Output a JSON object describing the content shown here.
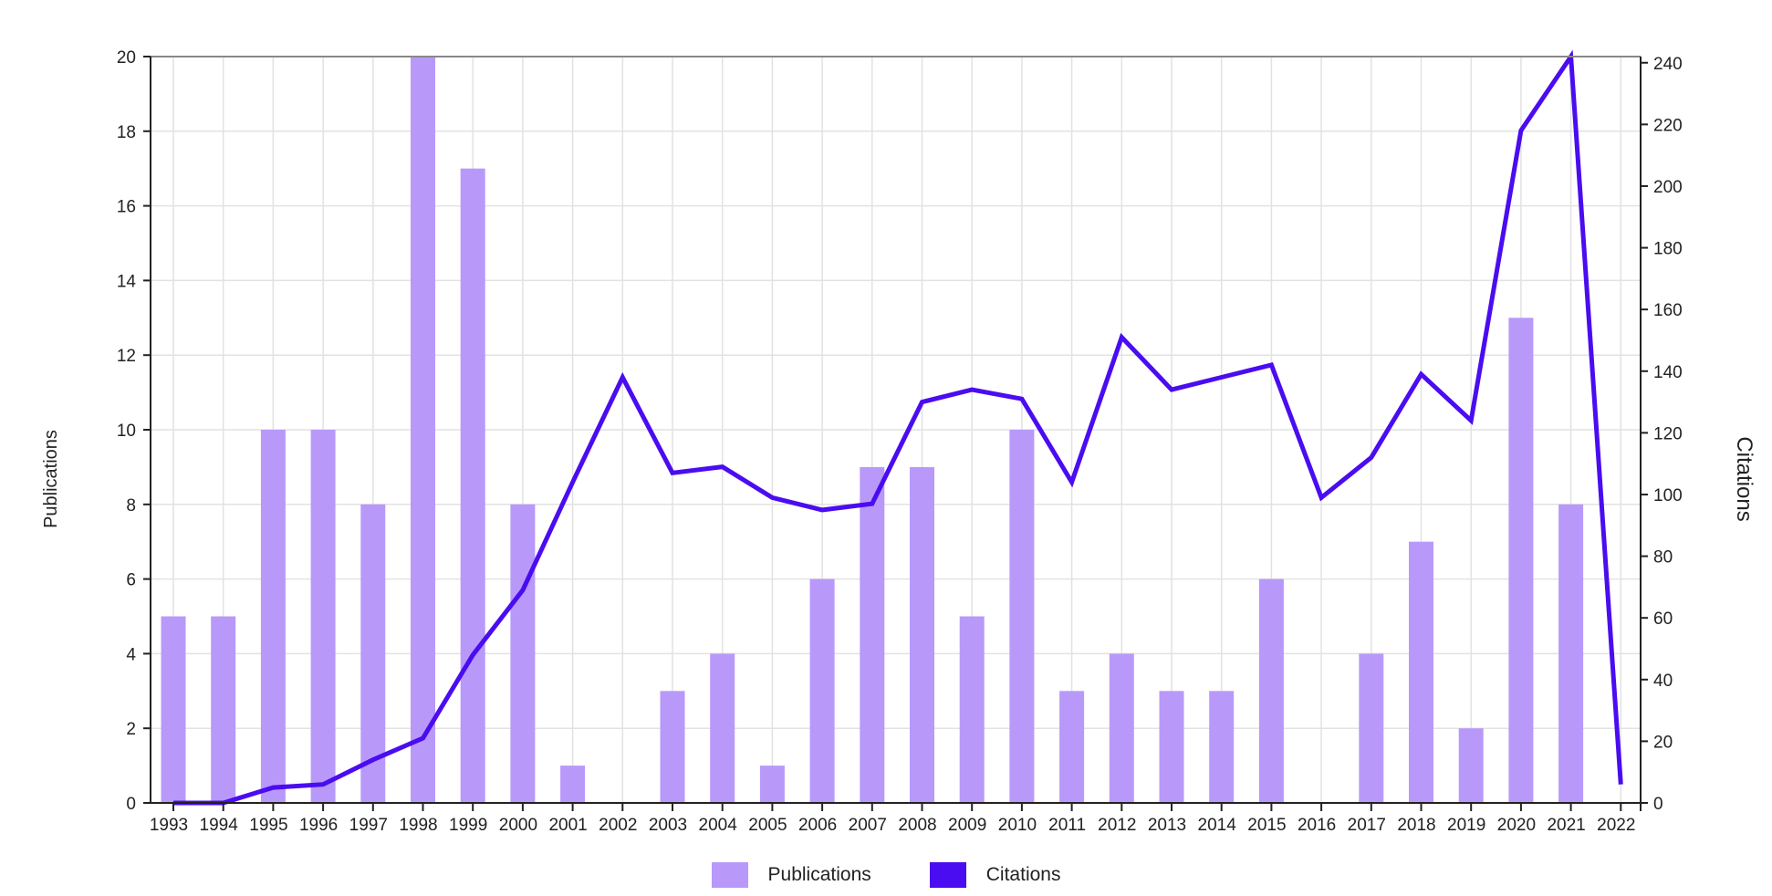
{
  "chart_data": {
    "type": "bar",
    "categories": [
      "1993",
      "1994",
      "1995",
      "1996",
      "1997",
      "1998",
      "1999",
      "2000",
      "2001",
      "2002",
      "2003",
      "2004",
      "2005",
      "2006",
      "2007",
      "2008",
      "2009",
      "2010",
      "2011",
      "2012",
      "2013",
      "2014",
      "2015",
      "2016",
      "2017",
      "2018",
      "2019",
      "2020",
      "2021",
      "2022"
    ],
    "series": [
      {
        "name": "Publications",
        "type": "bar",
        "axis": "left",
        "color": "#b899fa",
        "values": [
          5,
          5,
          10,
          10,
          8,
          20,
          17,
          8,
          1,
          0,
          3,
          4,
          1,
          6,
          9,
          9,
          5,
          10,
          3,
          4,
          3,
          3,
          6,
          0,
          4,
          7,
          2,
          13,
          8,
          0
        ]
      },
      {
        "name": "Citations",
        "type": "line",
        "axis": "right",
        "color": "#4a0cf0",
        "values": [
          0,
          0,
          5,
          6,
          14,
          21,
          48,
          69,
          104,
          138,
          107,
          109,
          99,
          95,
          97,
          130,
          134,
          131,
          104,
          151,
          134,
          138,
          142,
          99,
          112,
          139,
          124,
          218,
          242,
          6
        ]
      }
    ],
    "ylabel": "Publications",
    "y2label": "Citations",
    "ylim": [
      0,
      20
    ],
    "y2lim": [
      0,
      242
    ],
    "yticks": [
      0,
      2,
      4,
      6,
      8,
      10,
      12,
      14,
      16,
      18,
      20
    ],
    "y2ticks": [
      0,
      20,
      40,
      60,
      80,
      100,
      120,
      140,
      160,
      180,
      200,
      220,
      240
    ],
    "grid": true,
    "legend_position": "bottom"
  }
}
